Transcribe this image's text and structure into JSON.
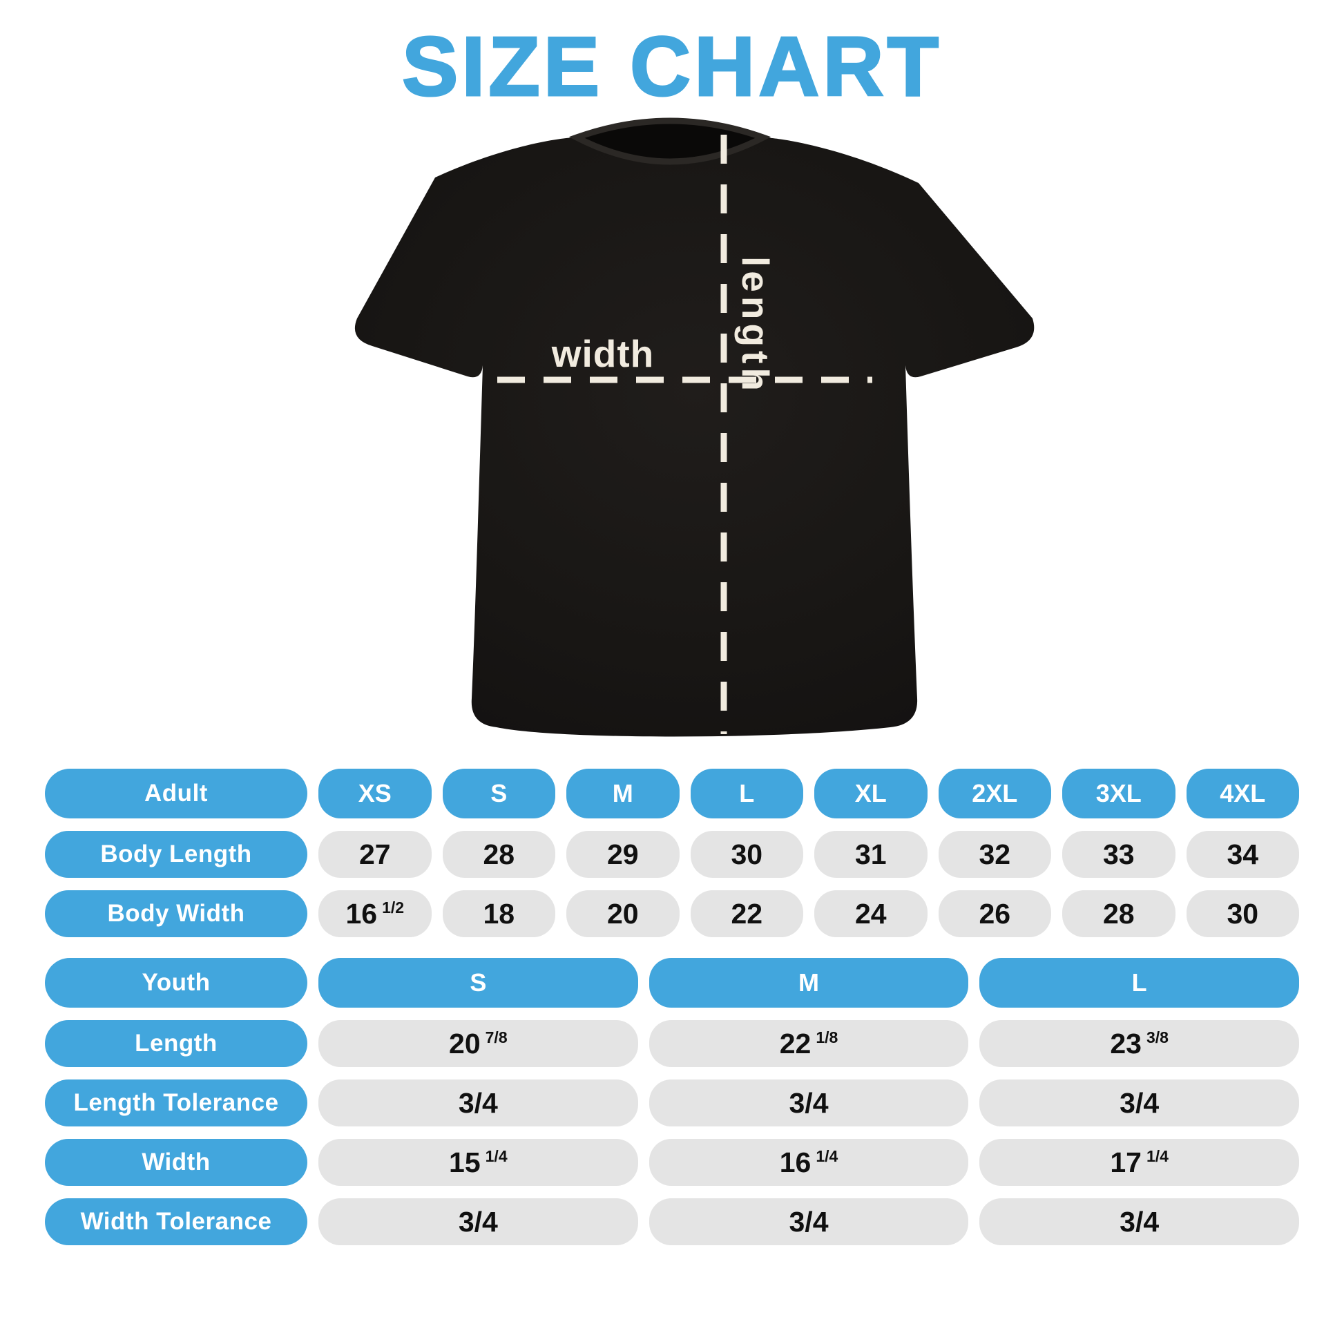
{
  "title": "SIZE CHART",
  "diagram": {
    "width_label": "width",
    "length_label": "length"
  },
  "adult_table": {
    "header": {
      "label": "Adult",
      "sizes": [
        "XS",
        "S",
        "M",
        "L",
        "XL",
        "2XL",
        "3XL",
        "4XL"
      ]
    },
    "rows": [
      {
        "label": "Body Length",
        "values": [
          {
            "main": "27",
            "frac": ""
          },
          {
            "main": "28",
            "frac": ""
          },
          {
            "main": "29",
            "frac": ""
          },
          {
            "main": "30",
            "frac": ""
          },
          {
            "main": "31",
            "frac": ""
          },
          {
            "main": "32",
            "frac": ""
          },
          {
            "main": "33",
            "frac": ""
          },
          {
            "main": "34",
            "frac": ""
          }
        ]
      },
      {
        "label": "Body Width",
        "values": [
          {
            "main": "16",
            "frac": "1/2"
          },
          {
            "main": "18",
            "frac": ""
          },
          {
            "main": "20",
            "frac": ""
          },
          {
            "main": "22",
            "frac": ""
          },
          {
            "main": "24",
            "frac": ""
          },
          {
            "main": "26",
            "frac": ""
          },
          {
            "main": "28",
            "frac": ""
          },
          {
            "main": "30",
            "frac": ""
          }
        ]
      }
    ]
  },
  "youth_table": {
    "header": {
      "label": "Youth",
      "sizes": [
        "S",
        "M",
        "L"
      ]
    },
    "rows": [
      {
        "label": "Length",
        "values": [
          {
            "main": "20",
            "frac": "7/8"
          },
          {
            "main": "22",
            "frac": "1/8"
          },
          {
            "main": "23",
            "frac": "3/8"
          }
        ]
      },
      {
        "label": "Length Tolerance",
        "values": [
          {
            "main": "3/4",
            "frac": ""
          },
          {
            "main": "3/4",
            "frac": ""
          },
          {
            "main": "3/4",
            "frac": ""
          }
        ]
      },
      {
        "label": "Width",
        "values": [
          {
            "main": "15",
            "frac": "1/4"
          },
          {
            "main": "16",
            "frac": "1/4"
          },
          {
            "main": "17",
            "frac": "1/4"
          }
        ]
      },
      {
        "label": "Width Tolerance",
        "values": [
          {
            "main": "3/4",
            "frac": ""
          },
          {
            "main": "3/4",
            "frac": ""
          },
          {
            "main": "3/4",
            "frac": ""
          }
        ]
      }
    ]
  },
  "colors": {
    "accent_blue": "#42a6dd",
    "pill_gray": "#e4e4e4",
    "shirt_black": "#171513",
    "measure_cream": "#f1ebdf",
    "text_dark": "#101010"
  }
}
